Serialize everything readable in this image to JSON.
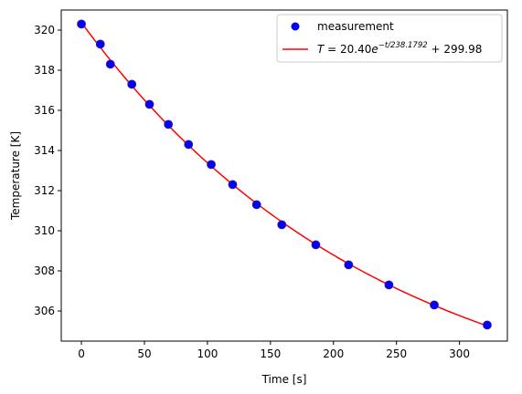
{
  "chart_data": {
    "type": "scatter",
    "xlabel": "Time [s]",
    "ylabel": "Temperature [K]",
    "xlim": [
      -16,
      338
    ],
    "ylim": [
      304.5,
      321.0
    ],
    "xticks": [
      0,
      50,
      100,
      150,
      200,
      250,
      300
    ],
    "yticks": [
      306,
      308,
      310,
      312,
      314,
      316,
      318,
      320
    ],
    "grid": false,
    "legend_position": "top-right",
    "series": [
      {
        "name": "measurement",
        "kind": "scatter",
        "color": "#0000ff",
        "edge_color": "#3b1c8c",
        "x": [
          0,
          15,
          23,
          40,
          54,
          69,
          85,
          103,
          120,
          139,
          159,
          186,
          212,
          244,
          280,
          322
        ],
        "y": [
          320.3,
          319.3,
          318.3,
          317.3,
          316.3,
          315.3,
          314.3,
          313.3,
          312.3,
          311.3,
          310.3,
          309.3,
          308.3,
          307.3,
          306.3,
          305.3
        ]
      },
      {
        "name_parts": {
          "lhs": "T",
          "eq": " = 20.40",
          "e": "e",
          "exp": "−t/238.1792",
          "rest": " + 299.98"
        },
        "kind": "line",
        "color": "#ff0000",
        "model": {
          "A": 20.4,
          "tau": 238.1792,
          "C": 299.98
        },
        "x_range": [
          0,
          322
        ]
      }
    ]
  }
}
